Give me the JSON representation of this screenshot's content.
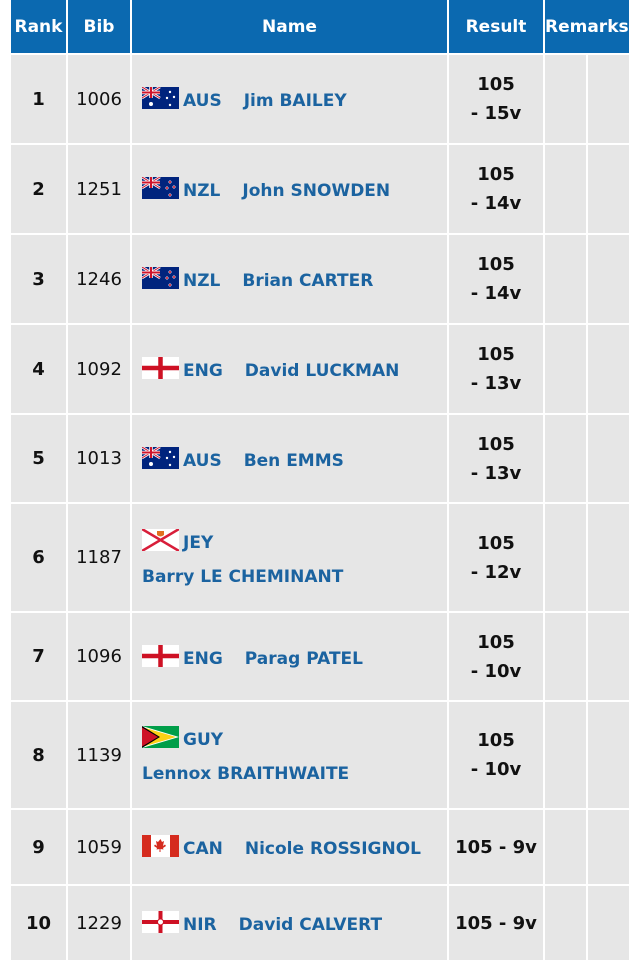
{
  "header": {
    "rank": "Rank",
    "bib": "Bib",
    "name": "Name",
    "result": "Result",
    "remarks": "Remarks"
  },
  "colors": {
    "header_bg": "#0b69b0",
    "cell_bg": "#e6e6e6",
    "name_text": "#1b63a0"
  },
  "rows": [
    {
      "rank": "1",
      "bib": "1006",
      "country": "AUS",
      "flag": "australia-flag-icon",
      "name": "Jim BAILEY",
      "result": [
        "105",
        "- 15v"
      ]
    },
    {
      "rank": "2",
      "bib": "1251",
      "country": "NZL",
      "flag": "new-zealand-flag-icon",
      "name": "John SNOWDEN",
      "result": [
        "105",
        "- 14v"
      ]
    },
    {
      "rank": "3",
      "bib": "1246",
      "country": "NZL",
      "flag": "new-zealand-flag-icon",
      "name": "Brian CARTER",
      "result": [
        "105",
        "- 14v"
      ]
    },
    {
      "rank": "4",
      "bib": "1092",
      "country": "ENG",
      "flag": "england-flag-icon",
      "name": "David LUCKMAN",
      "result": [
        "105",
        "- 13v"
      ]
    },
    {
      "rank": "5",
      "bib": "1013",
      "country": "AUS",
      "flag": "australia-flag-icon",
      "name": "Ben EMMS",
      "result": [
        "105",
        "- 13v"
      ]
    },
    {
      "rank": "6",
      "bib": "1187",
      "country": "JEY",
      "flag": "jersey-flag-icon",
      "name": "Barry LE CHEMINANT",
      "result": [
        "105",
        "- 12v"
      ]
    },
    {
      "rank": "7",
      "bib": "1096",
      "country": "ENG",
      "flag": "england-flag-icon",
      "name": "Parag PATEL",
      "result": [
        "105",
        "- 10v"
      ]
    },
    {
      "rank": "8",
      "bib": "1139",
      "country": "GUY",
      "flag": "guyana-flag-icon",
      "name": "Lennox BRAITHWAITE",
      "result": [
        "105",
        "- 10v"
      ]
    },
    {
      "rank": "9",
      "bib": "1059",
      "country": "CAN",
      "flag": "canada-flag-icon",
      "name": "Nicole ROSSIGNOL",
      "result": [
        "105 - 9v"
      ]
    },
    {
      "rank": "10",
      "bib": "1229",
      "country": "NIR",
      "flag": "northern-ireland-flag-icon",
      "name": "David CALVERT",
      "result": [
        "105 - 9v"
      ]
    }
  ]
}
